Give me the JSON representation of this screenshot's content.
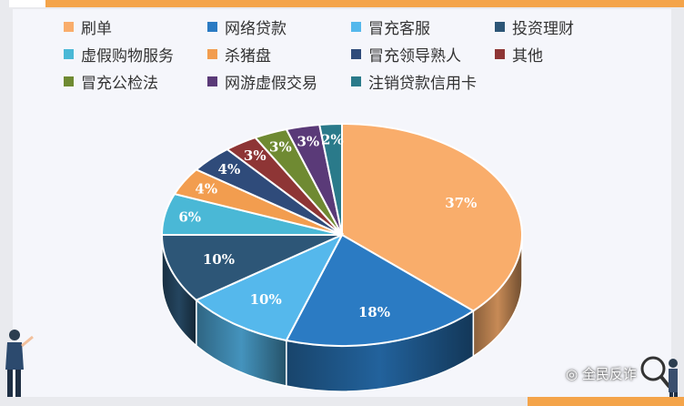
{
  "chart_data": {
    "type": "pie",
    "title": "",
    "legend_position": "top",
    "series": [
      {
        "name": "刷单",
        "value": 37,
        "label": "37%",
        "color": "#f9ad6b"
      },
      {
        "name": "网络贷款",
        "value": 18,
        "label": "18%",
        "color": "#2b7bc3"
      },
      {
        "name": "冒充客服",
        "value": 10,
        "label": "10%",
        "color": "#55b8ec"
      },
      {
        "name": "投资理财",
        "value": 10,
        "label": "10%",
        "color": "#2d5677"
      },
      {
        "name": "虚假购物服务",
        "value": 6,
        "label": "6%",
        "color": "#4ab8d6"
      },
      {
        "name": "杀猪盘",
        "value": 4,
        "label": "4%",
        "color": "#f29d4f"
      },
      {
        "name": "冒充领导熟人",
        "value": 4,
        "label": "4%",
        "color": "#2f4b7a"
      },
      {
        "name": "其他",
        "value": 3,
        "label": "3%",
        "color": "#8e3535"
      },
      {
        "name": "冒充公检法",
        "value": 3,
        "label": "3%",
        "color": "#6f8a32"
      },
      {
        "name": "网游虚假交易",
        "value": 3,
        "label": "3%",
        "color": "#5a3a78"
      },
      {
        "name": "注销贷款信用卡",
        "value": 2,
        "label": "2%",
        "color": "#2a7a8a"
      }
    ]
  },
  "watermark": {
    "text": "全民反诈",
    "icon": "wechat-icon"
  },
  "decorations": {
    "left": "businessman-pointing",
    "right": "figure-with-magnifier"
  }
}
